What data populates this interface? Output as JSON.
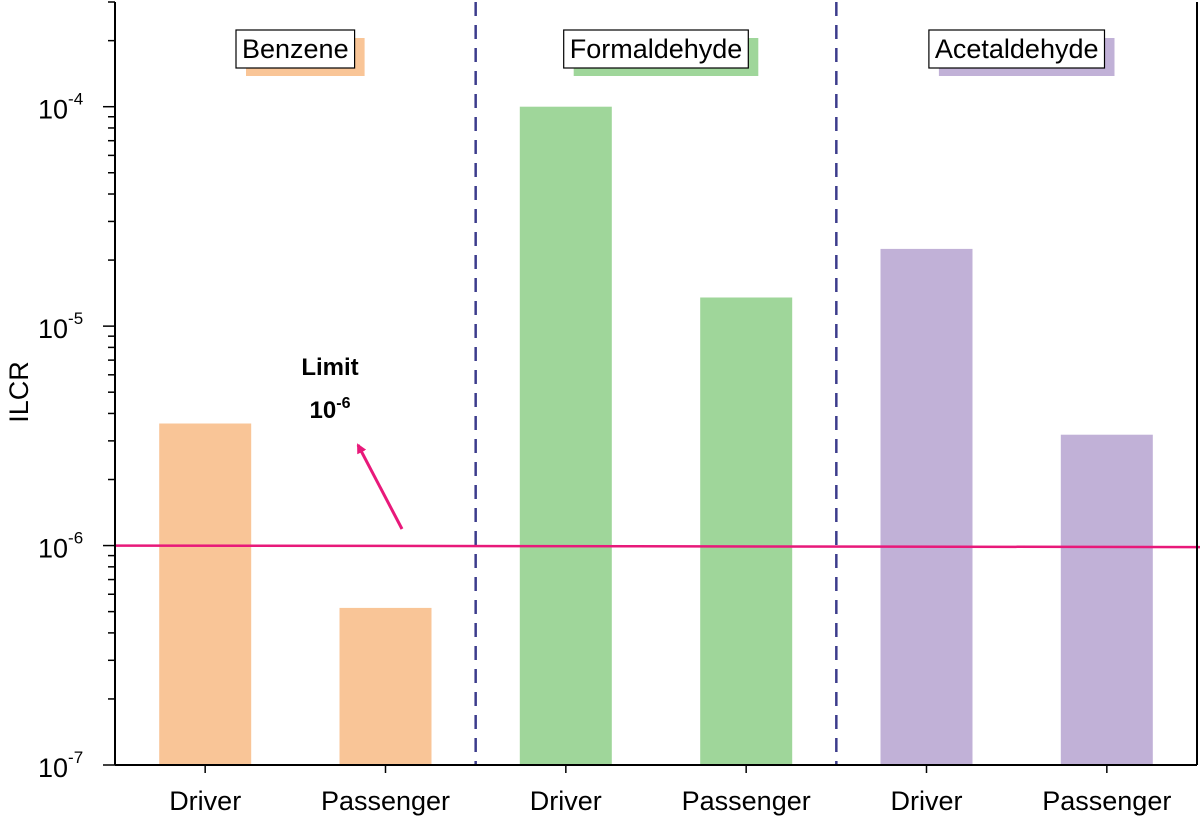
{
  "chart_data": {
    "type": "bar",
    "y_scale": "log",
    "ylabel": "ILCR",
    "ylim": [
      1e-07,
      0.0003
    ],
    "y_ticks": [
      {
        "value": 1e-07,
        "base": "10",
        "exp": "-7"
      },
      {
        "value": 1e-06,
        "base": "10",
        "exp": "-6"
      },
      {
        "value": 1e-05,
        "base": "10",
        "exp": "-5"
      },
      {
        "value": 0.0001,
        "base": "10",
        "exp": "-4"
      }
    ],
    "groups": [
      {
        "name": "Benzene",
        "color": "#f9c597",
        "bars": [
          {
            "category": "Driver",
            "value": 3.6e-06
          },
          {
            "category": "Passenger",
            "value": 5.2e-07
          }
        ]
      },
      {
        "name": "Formaldehyde",
        "color": "#9fd69a",
        "bars": [
          {
            "category": "Driver",
            "value": 0.0001
          },
          {
            "category": "Passenger",
            "value": 1.35e-05
          }
        ]
      },
      {
        "name": "Acetaldehyde",
        "color": "#c1b1d7",
        "bars": [
          {
            "category": "Driver",
            "value": 2.25e-05
          },
          {
            "category": "Passenger",
            "value": 3.2e-06
          }
        ]
      }
    ],
    "limit": {
      "value": 1e-06,
      "label_line1": "Limit",
      "label_base": "10",
      "label_exp": "-6",
      "color": "#e8197a"
    },
    "separator_color": "#3c3c8c"
  }
}
